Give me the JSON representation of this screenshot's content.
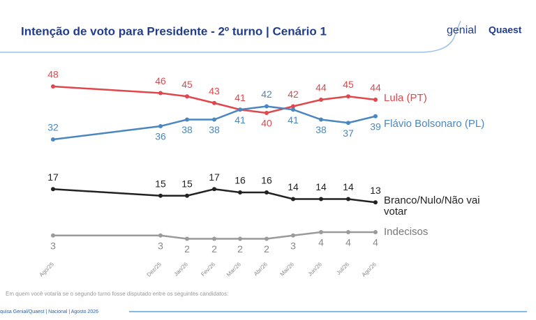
{
  "chart_data": {
    "type": "line",
    "title": "Intenção de voto para Presidente - 2º turno | Cenário 1",
    "logos": [
      "genial",
      "Quaest"
    ],
    "note": "Em quem você votaria se o segundo turno fosse disputado entre os seguintes candidatos:",
    "source": "quisa Genial/Quaest | Nacional | Agosto 2026",
    "categories": [
      "Ago/25",
      "Dez/25",
      "Jan/26",
      "Fev/26",
      "Mar/26",
      "Abr/26",
      "Mai/26",
      "Jun/26",
      "Jul/26",
      "Ago/26"
    ],
    "ylim": [
      0,
      50
    ],
    "series": [
      {
        "name": "Lula (PT)",
        "color": "#e0474c",
        "values": [
          48,
          46,
          45,
          43,
          41,
          40,
          42,
          44,
          45,
          44
        ]
      },
      {
        "name": "Flávio Bolsonaro (PL)",
        "color": "#4a86c0",
        "values": [
          32,
          36,
          38,
          38,
          41,
          42,
          41,
          38,
          37,
          39
        ]
      },
      {
        "name": "Branco/Nulo/Não vai votar",
        "color": "#222222",
        "values": [
          17,
          15,
          15,
          17,
          16,
          16,
          14,
          14,
          14,
          13
        ]
      },
      {
        "name": "Indecisos",
        "color": "#9a9a9a",
        "values": [
          3,
          3,
          2,
          2,
          2,
          2,
          3,
          4,
          4,
          4
        ]
      }
    ]
  }
}
